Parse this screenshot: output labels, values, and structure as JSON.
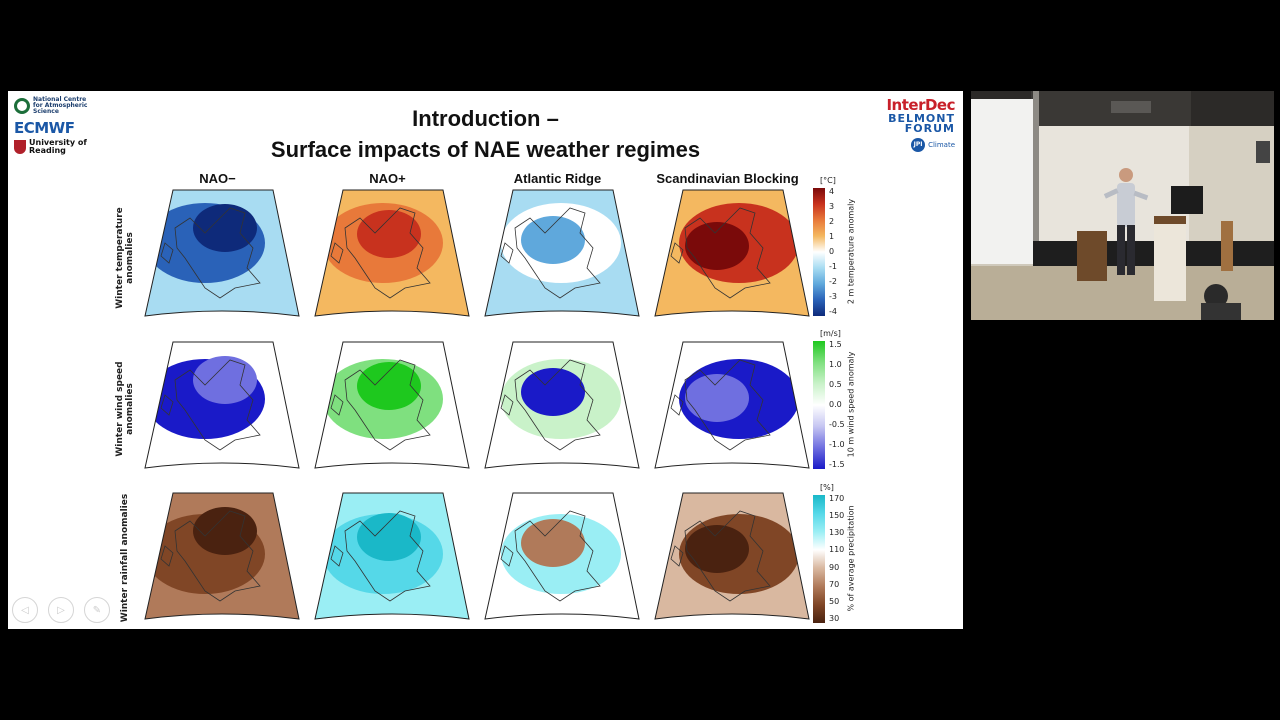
{
  "slide": {
    "title_line1": "Introduction –",
    "title_line2": "Surface impacts of NAE weather regimes",
    "logos": {
      "ncas": "National Centre for Atmospheric Science",
      "ecmwf": "ECMWF",
      "reading_line1": "University of",
      "reading_line2": "Reading",
      "interdec": "InterDec",
      "belmont_line1": "BELMONT",
      "belmont_line2": "FORUM",
      "jpi_mark": "JPI",
      "jpi_text": "Climate"
    },
    "columns": [
      "NAO−",
      "NAO+",
      "Atlantic Ridge",
      "Scandinavian Blocking"
    ],
    "rows": [
      {
        "label": "Winter temperature anomalies",
        "unit": "[°C]",
        "colorbar_label": "2 m temperature anomaly",
        "ticks": [
          "4",
          "3",
          "2",
          "1",
          "0",
          "-1",
          "-2",
          "-3",
          "-4"
        ],
        "colors": [
          "#7a0a0a",
          "#c8321e",
          "#e8793a",
          "#f4b860",
          "#ffffff",
          "#a8dcf2",
          "#5fa8dc",
          "#2a62b8",
          "#0e2a7a"
        ]
      },
      {
        "label": "Winter wind speed anomalies",
        "unit": "[m/s]",
        "colorbar_label": "10 m wind speed anomaly",
        "ticks": [
          "1.5",
          "1.0",
          "0.5",
          "0.0",
          "-0.5",
          "-1.0",
          "-1.5"
        ],
        "colors": [
          "#1ec81e",
          "#7fe07f",
          "#c9f2c9",
          "#ffffff",
          "#c6c6f2",
          "#6f6fe0",
          "#1a1ac8"
        ]
      },
      {
        "label": "Winter rainfall anomalies",
        "unit": "[%]",
        "colorbar_label": "% of average precipitation",
        "ticks": [
          "170",
          "150",
          "130",
          "110",
          "90",
          "70",
          "50",
          "30"
        ],
        "colors": [
          "#1ab8c8",
          "#55d8e8",
          "#9aeef4",
          "#ffffff",
          "#d9b8a0",
          "#b07a5a",
          "#804626",
          "#4a2210"
        ]
      }
    ]
  }
}
